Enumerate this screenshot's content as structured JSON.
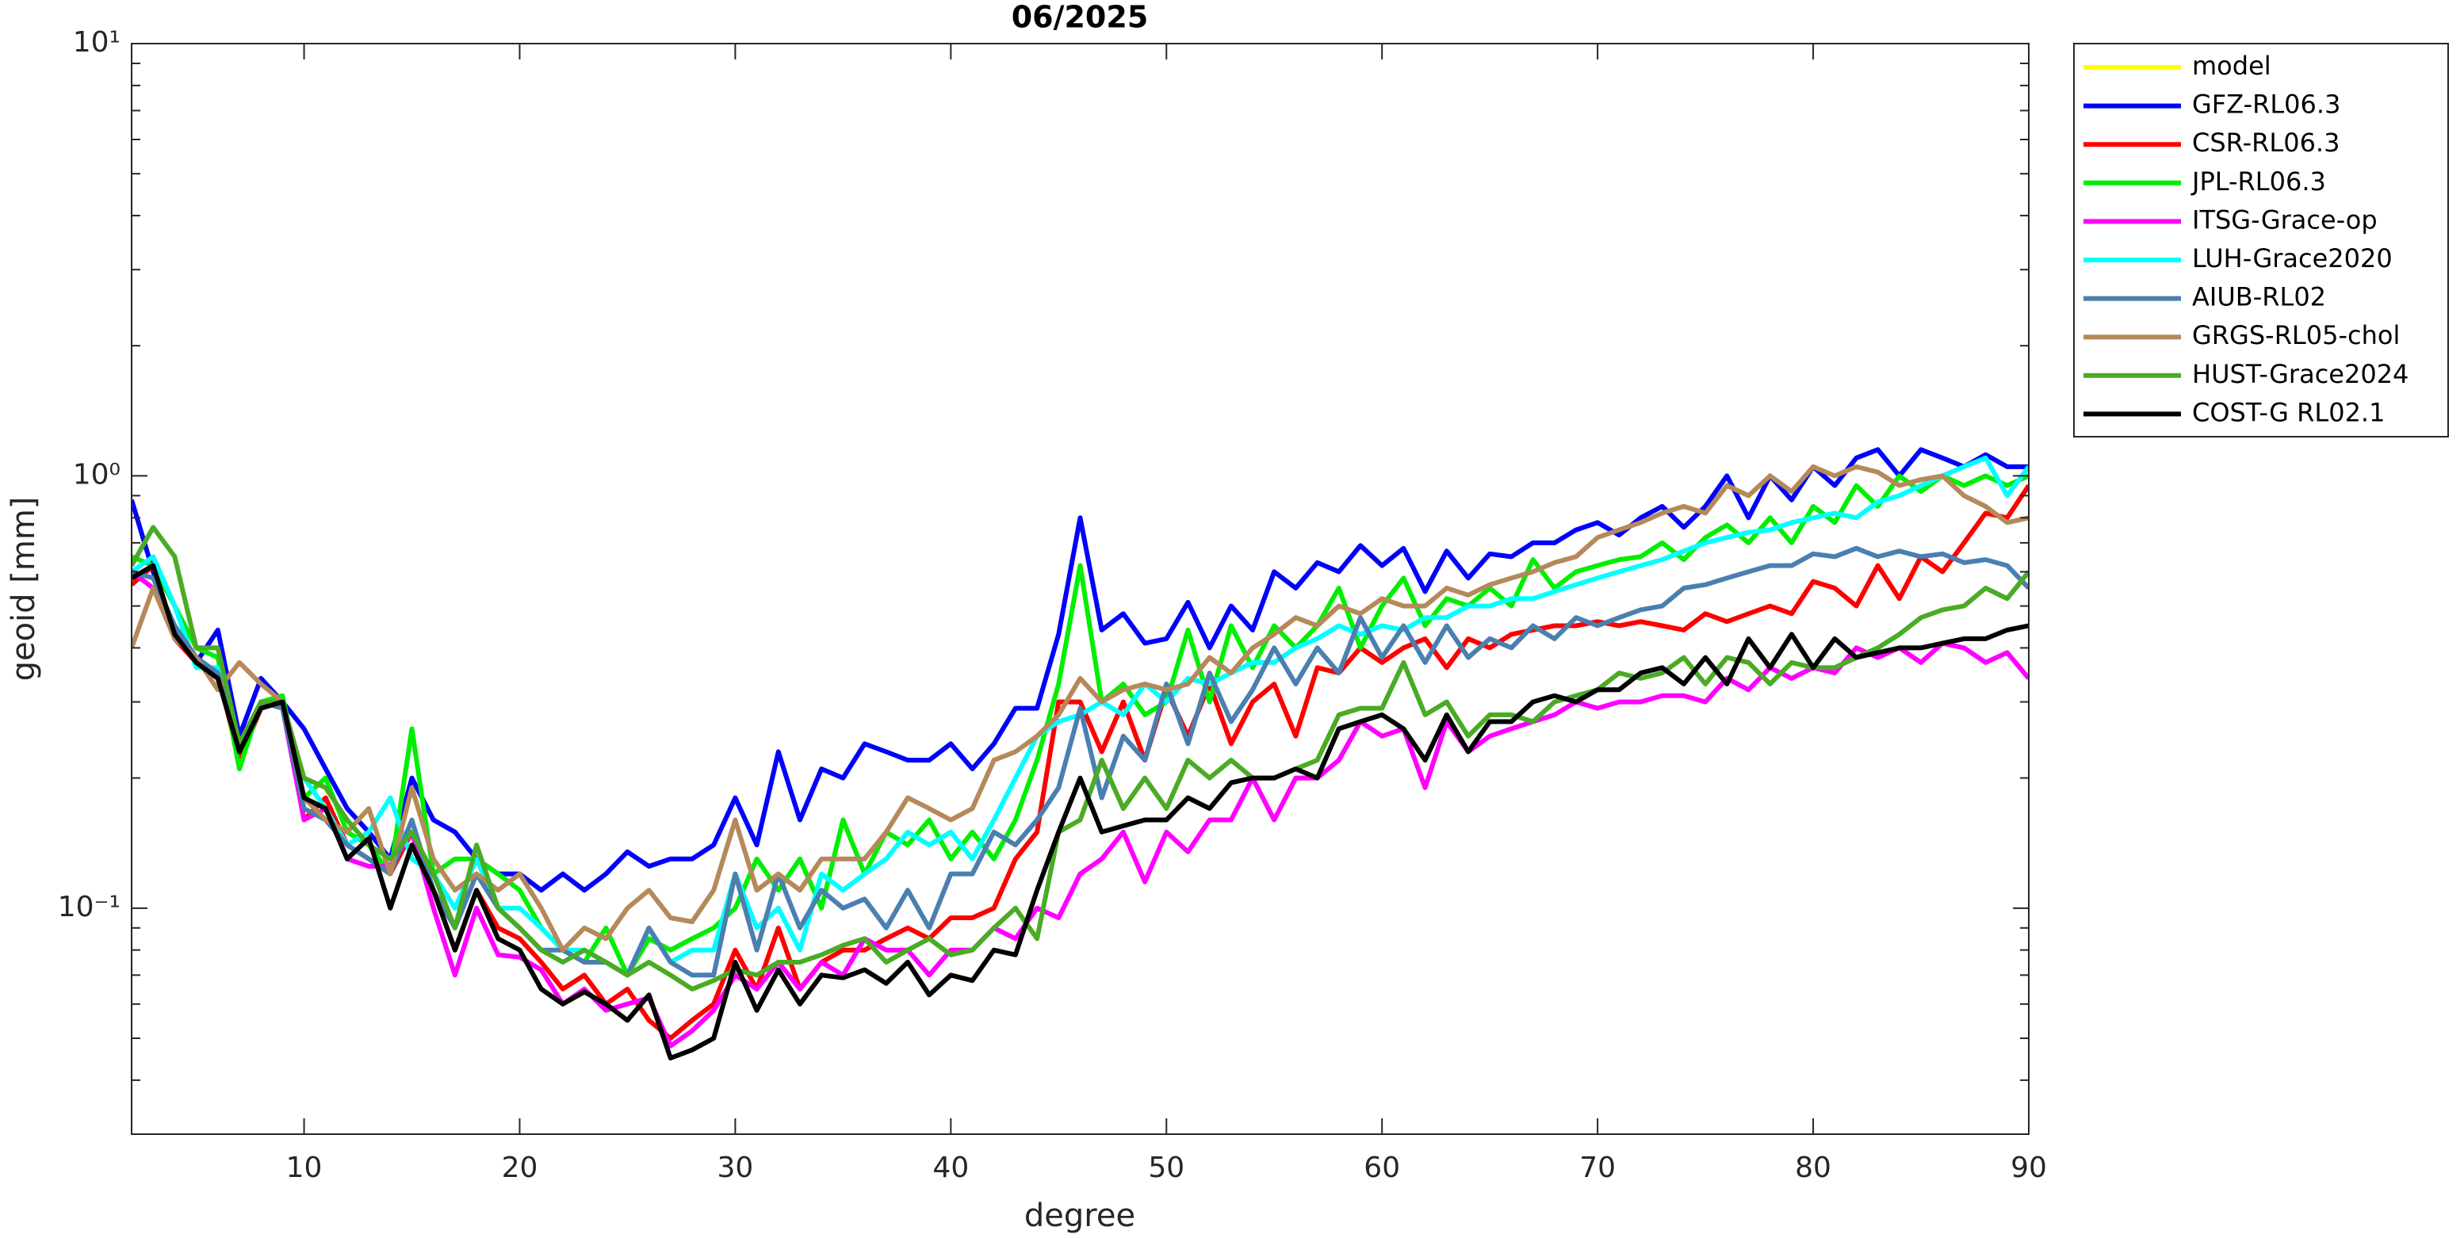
{
  "chart_data": {
    "type": "line",
    "title": "06/2025",
    "xlabel": "degree",
    "ylabel": "geoid [mm]",
    "yscale": "log",
    "grid": false,
    "legend": "northeastoutside",
    "xlim": [
      2,
      90
    ],
    "ylim": [
      0.03,
      10
    ],
    "xticks": [
      10,
      20,
      30,
      40,
      50,
      60,
      70,
      80,
      90
    ],
    "yticks": [
      {
        "value": 0.1,
        "label": "10⁻¹"
      },
      {
        "value": 1,
        "label": "10⁰"
      },
      {
        "value": 10,
        "label": "10¹"
      }
    ],
    "yminorticks": [
      0.03,
      0.04,
      0.05,
      0.06,
      0.07,
      0.08,
      0.09,
      0.2,
      0.3,
      0.4,
      0.5,
      0.6,
      0.7,
      0.8,
      0.9,
      2,
      3,
      4,
      5,
      6,
      7,
      8,
      9
    ],
    "x": [
      2,
      3,
      4,
      5,
      6,
      7,
      8,
      9,
      10,
      11,
      12,
      13,
      14,
      15,
      16,
      17,
      18,
      19,
      20,
      21,
      22,
      23,
      24,
      25,
      26,
      27,
      28,
      29,
      30,
      31,
      32,
      33,
      34,
      35,
      36,
      37,
      38,
      39,
      40,
      41,
      42,
      43,
      44,
      45,
      46,
      47,
      48,
      49,
      50,
      51,
      52,
      53,
      54,
      55,
      56,
      57,
      58,
      59,
      60,
      61,
      62,
      63,
      64,
      65,
      66,
      67,
      68,
      69,
      70,
      71,
      72,
      73,
      74,
      75,
      76,
      77,
      78,
      79,
      80,
      81,
      82,
      83,
      84,
      85,
      86,
      87,
      88,
      89,
      90
    ],
    "series": [
      {
        "name": "model",
        "color": "#ffff00",
        "values": [
          null,
          null,
          null,
          null,
          null,
          null,
          null,
          null,
          null,
          null,
          null,
          null,
          null,
          null,
          null,
          null,
          null,
          null,
          null,
          null,
          null,
          null,
          null,
          null,
          null,
          null,
          null,
          null,
          null,
          null,
          null,
          null,
          null,
          null,
          null,
          null,
          null,
          null,
          null,
          null,
          null,
          null,
          null,
          null,
          null,
          null,
          null,
          null,
          null,
          null,
          null,
          null,
          null,
          null,
          null,
          null,
          null,
          null,
          null,
          null,
          null,
          null,
          null,
          null,
          null,
          null,
          null,
          null,
          null,
          null,
          null,
          null,
          null,
          null,
          null,
          null,
          null,
          null,
          null,
          null,
          null,
          null,
          null,
          null,
          null,
          null,
          null,
          null,
          null
        ]
      },
      {
        "name": "GFZ-RL06.3",
        "color": "#0000ff",
        "values": [
          0.88,
          0.6,
          0.42,
          0.37,
          0.44,
          0.25,
          0.34,
          0.3,
          0.26,
          0.21,
          0.17,
          0.15,
          0.13,
          0.2,
          0.16,
          0.15,
          0.13,
          0.12,
          0.12,
          0.11,
          0.12,
          0.11,
          0.12,
          0.135,
          0.125,
          0.13,
          0.13,
          0.14,
          0.18,
          0.14,
          0.23,
          0.16,
          0.21,
          0.2,
          0.24,
          0.23,
          0.22,
          0.22,
          0.24,
          0.21,
          0.24,
          0.29,
          0.29,
          0.43,
          0.8,
          0.44,
          0.48,
          0.41,
          0.42,
          0.51,
          0.4,
          0.5,
          0.44,
          0.6,
          0.55,
          0.63,
          0.6,
          0.69,
          0.62,
          0.68,
          0.54,
          0.67,
          0.58,
          0.66,
          0.65,
          0.7,
          0.7,
          0.75,
          0.78,
          0.73,
          0.8,
          0.85,
          0.76,
          0.85,
          1.0,
          0.8,
          1.0,
          0.88,
          1.05,
          0.95,
          1.1,
          1.15,
          1.0,
          1.15,
          1.1,
          1.05,
          1.12,
          1.05,
          1.05
        ]
      },
      {
        "name": "CSR-RL06.3",
        "color": "#ff0000",
        "values": [
          0.56,
          0.62,
          0.42,
          0.37,
          0.35,
          0.22,
          0.29,
          0.3,
          0.16,
          0.18,
          0.14,
          0.13,
          0.12,
          0.15,
          0.11,
          0.08,
          0.11,
          0.09,
          0.085,
          0.075,
          0.065,
          0.07,
          0.06,
          0.065,
          0.055,
          0.05,
          0.055,
          0.06,
          0.08,
          0.065,
          0.09,
          0.065,
          0.075,
          0.08,
          0.08,
          0.085,
          0.09,
          0.085,
          0.095,
          0.095,
          0.1,
          0.13,
          0.15,
          0.3,
          0.3,
          0.23,
          0.3,
          0.22,
          0.32,
          0.25,
          0.33,
          0.24,
          0.3,
          0.33,
          0.25,
          0.36,
          0.35,
          0.4,
          0.37,
          0.4,
          0.42,
          0.36,
          0.42,
          0.4,
          0.43,
          0.44,
          0.45,
          0.45,
          0.46,
          0.45,
          0.46,
          0.45,
          0.44,
          0.48,
          0.46,
          0.48,
          0.5,
          0.48,
          0.57,
          0.55,
          0.5,
          0.62,
          0.52,
          0.65,
          0.6,
          0.7,
          0.82,
          0.8,
          0.95
        ]
      },
      {
        "name": "JPL-RL06.3",
        "color": "#00ee00",
        "values": [
          0.65,
          0.62,
          0.5,
          0.4,
          0.38,
          0.21,
          0.3,
          0.31,
          0.18,
          0.2,
          0.15,
          0.14,
          0.12,
          0.26,
          0.12,
          0.13,
          0.13,
          0.12,
          0.11,
          0.09,
          0.08,
          0.075,
          0.09,
          0.07,
          0.085,
          0.08,
          0.085,
          0.09,
          0.1,
          0.13,
          0.11,
          0.13,
          0.1,
          0.16,
          0.12,
          0.15,
          0.14,
          0.16,
          0.13,
          0.15,
          0.13,
          0.16,
          0.22,
          0.33,
          0.62,
          0.3,
          0.33,
          0.28,
          0.3,
          0.44,
          0.3,
          0.45,
          0.36,
          0.45,
          0.4,
          0.45,
          0.55,
          0.4,
          0.5,
          0.58,
          0.45,
          0.52,
          0.5,
          0.55,
          0.5,
          0.64,
          0.55,
          0.6,
          0.62,
          0.64,
          0.65,
          0.7,
          0.64,
          0.72,
          0.77,
          0.7,
          0.8,
          0.7,
          0.85,
          0.78,
          0.95,
          0.85,
          1.0,
          0.92,
          1.0,
          0.95,
          1.0,
          0.95,
          1.0
        ]
      },
      {
        "name": "ITSG-Grace-op",
        "color": "#ff00ff",
        "values": [
          0.6,
          0.55,
          0.45,
          0.38,
          0.34,
          0.23,
          0.3,
          0.29,
          0.16,
          0.17,
          0.13,
          0.125,
          0.125,
          0.15,
          0.1,
          0.07,
          0.1,
          0.078,
          0.077,
          0.072,
          0.06,
          0.065,
          0.058,
          0.06,
          0.062,
          0.048,
          0.052,
          0.058,
          0.07,
          0.065,
          0.075,
          0.065,
          0.075,
          0.07,
          0.085,
          0.08,
          0.08,
          0.07,
          0.08,
          0.08,
          0.09,
          0.085,
          0.1,
          0.095,
          0.12,
          0.13,
          0.15,
          0.115,
          0.15,
          0.135,
          0.16,
          0.16,
          0.2,
          0.16,
          0.2,
          0.2,
          0.22,
          0.27,
          0.25,
          0.26,
          0.19,
          0.27,
          0.23,
          0.25,
          0.26,
          0.27,
          0.28,
          0.3,
          0.29,
          0.3,
          0.3,
          0.31,
          0.31,
          0.3,
          0.34,
          0.32,
          0.36,
          0.34,
          0.36,
          0.35,
          0.4,
          0.38,
          0.4,
          0.37,
          0.41,
          0.4,
          0.37,
          0.39,
          0.34
        ]
      },
      {
        "name": "LUH-Grace2020",
        "color": "#00ffff",
        "values": [
          0.6,
          0.65,
          0.5,
          0.36,
          0.36,
          0.24,
          0.3,
          0.29,
          0.2,
          0.17,
          0.14,
          0.15,
          0.18,
          0.13,
          0.12,
          0.1,
          0.13,
          0.1,
          0.1,
          0.09,
          0.08,
          0.08,
          0.075,
          0.07,
          0.09,
          0.075,
          0.08,
          0.08,
          0.12,
          0.09,
          0.1,
          0.08,
          0.12,
          0.11,
          0.12,
          0.13,
          0.15,
          0.14,
          0.15,
          0.13,
          0.16,
          0.2,
          0.25,
          0.27,
          0.28,
          0.3,
          0.28,
          0.33,
          0.3,
          0.34,
          0.33,
          0.35,
          0.37,
          0.37,
          0.4,
          0.42,
          0.45,
          0.43,
          0.45,
          0.44,
          0.47,
          0.47,
          0.5,
          0.5,
          0.52,
          0.52,
          0.54,
          0.56,
          0.58,
          0.6,
          0.62,
          0.64,
          0.67,
          0.7,
          0.72,
          0.74,
          0.75,
          0.78,
          0.8,
          0.82,
          0.8,
          0.87,
          0.9,
          0.95,
          1.0,
          1.05,
          1.1,
          0.9,
          1.05
        ]
      },
      {
        "name": "AIUB-RL02",
        "color": "#4a7fb0",
        "values": [
          0.6,
          0.58,
          0.45,
          0.38,
          0.35,
          0.24,
          0.3,
          0.29,
          0.17,
          0.16,
          0.14,
          0.13,
          0.12,
          0.16,
          0.11,
          0.09,
          0.12,
          0.1,
          0.09,
          0.08,
          0.08,
          0.075,
          0.075,
          0.07,
          0.09,
          0.075,
          0.07,
          0.07,
          0.12,
          0.08,
          0.12,
          0.09,
          0.11,
          0.1,
          0.105,
          0.09,
          0.11,
          0.09,
          0.12,
          0.12,
          0.15,
          0.14,
          0.16,
          0.19,
          0.29,
          0.18,
          0.25,
          0.22,
          0.33,
          0.24,
          0.35,
          0.27,
          0.32,
          0.4,
          0.33,
          0.4,
          0.35,
          0.47,
          0.38,
          0.45,
          0.37,
          0.45,
          0.38,
          0.42,
          0.4,
          0.45,
          0.42,
          0.47,
          0.45,
          0.47,
          0.49,
          0.5,
          0.55,
          0.56,
          0.58,
          0.6,
          0.62,
          0.62,
          0.66,
          0.65,
          0.68,
          0.65,
          0.67,
          0.65,
          0.66,
          0.63,
          0.64,
          0.62,
          0.55
        ]
      },
      {
        "name": "GRGS-RL05-chol",
        "color": "#b5895a",
        "values": [
          0.4,
          0.55,
          0.42,
          0.38,
          0.32,
          0.37,
          0.33,
          0.3,
          0.18,
          0.16,
          0.15,
          0.17,
          0.12,
          0.19,
          0.13,
          0.11,
          0.12,
          0.11,
          0.12,
          0.1,
          0.08,
          0.09,
          0.085,
          0.1,
          0.11,
          0.095,
          0.093,
          0.11,
          0.16,
          0.11,
          0.12,
          0.11,
          0.13,
          0.13,
          0.13,
          0.15,
          0.18,
          0.17,
          0.16,
          0.17,
          0.22,
          0.23,
          0.25,
          0.28,
          0.34,
          0.3,
          0.32,
          0.33,
          0.32,
          0.33,
          0.38,
          0.35,
          0.4,
          0.43,
          0.47,
          0.45,
          0.5,
          0.48,
          0.52,
          0.5,
          0.5,
          0.55,
          0.53,
          0.56,
          0.58,
          0.6,
          0.63,
          0.65,
          0.72,
          0.75,
          0.78,
          0.82,
          0.85,
          0.82,
          0.95,
          0.9,
          1.0,
          0.92,
          1.05,
          1.0,
          1.05,
          1.02,
          0.95,
          0.98,
          1.0,
          0.9,
          0.85,
          0.78,
          0.8
        ]
      },
      {
        "name": "HUST-Grace2024",
        "color": "#4aab25",
        "values": [
          0.62,
          0.76,
          0.65,
          0.4,
          0.4,
          0.24,
          0.3,
          0.3,
          0.2,
          0.19,
          0.16,
          0.14,
          0.13,
          0.15,
          0.12,
          0.09,
          0.14,
          0.1,
          0.09,
          0.08,
          0.075,
          0.08,
          0.075,
          0.07,
          0.075,
          0.07,
          0.065,
          0.068,
          0.072,
          0.07,
          0.075,
          0.075,
          0.078,
          0.082,
          0.085,
          0.075,
          0.08,
          0.085,
          0.078,
          0.08,
          0.09,
          0.1,
          0.085,
          0.15,
          0.16,
          0.22,
          0.17,
          0.2,
          0.17,
          0.22,
          0.2,
          0.22,
          0.2,
          0.2,
          0.21,
          0.22,
          0.28,
          0.29,
          0.29,
          0.37,
          0.28,
          0.3,
          0.25,
          0.28,
          0.28,
          0.27,
          0.3,
          0.31,
          0.32,
          0.35,
          0.34,
          0.35,
          0.38,
          0.33,
          0.38,
          0.37,
          0.33,
          0.37,
          0.36,
          0.36,
          0.38,
          0.4,
          0.43,
          0.47,
          0.49,
          0.5,
          0.55,
          0.52,
          0.6
        ]
      },
      {
        "name": "COST-G RL02.1",
        "color": "#000000",
        "values": [
          0.58,
          0.62,
          0.43,
          0.37,
          0.34,
          0.23,
          0.29,
          0.3,
          0.18,
          0.17,
          0.13,
          0.145,
          0.1,
          0.14,
          0.11,
          0.08,
          0.11,
          0.085,
          0.08,
          0.065,
          0.06,
          0.064,
          0.06,
          0.055,
          0.063,
          0.045,
          0.047,
          0.05,
          0.075,
          0.058,
          0.072,
          0.06,
          0.07,
          0.069,
          0.072,
          0.067,
          0.075,
          0.063,
          0.07,
          0.068,
          0.08,
          0.078,
          0.11,
          0.15,
          0.2,
          0.15,
          0.155,
          0.16,
          0.16,
          0.18,
          0.17,
          0.195,
          0.2,
          0.2,
          0.21,
          0.2,
          0.26,
          0.27,
          0.28,
          0.26,
          0.22,
          0.28,
          0.23,
          0.27,
          0.27,
          0.3,
          0.31,
          0.3,
          0.32,
          0.32,
          0.35,
          0.36,
          0.33,
          0.38,
          0.33,
          0.42,
          0.36,
          0.43,
          0.36,
          0.42,
          0.38,
          0.39,
          0.4,
          0.4,
          0.41,
          0.42,
          0.42,
          0.44,
          0.45
        ]
      }
    ]
  }
}
